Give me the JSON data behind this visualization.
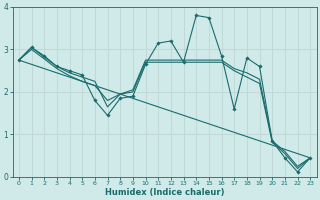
{
  "xlabel": "Humidex (Indice chaleur)",
  "xlim": [
    -0.5,
    23.5
  ],
  "ylim": [
    0,
    4
  ],
  "xticks": [
    0,
    1,
    2,
    3,
    4,
    5,
    6,
    7,
    8,
    9,
    10,
    11,
    12,
    13,
    14,
    15,
    16,
    17,
    18,
    19,
    20,
    21,
    22,
    23
  ],
  "yticks": [
    0,
    1,
    2,
    3,
    4
  ],
  "background_color": "#d0eaea",
  "line_color": "#1a6b6b",
  "grid_color": "#c0d8d8",
  "lines": [
    {
      "x": [
        0,
        1,
        2,
        3,
        4,
        5,
        6,
        7,
        8,
        9,
        10,
        11,
        12,
        13,
        14,
        15,
        16,
        17,
        18,
        19,
        20,
        21,
        22,
        23
      ],
      "y": [
        2.75,
        3.05,
        2.85,
        2.6,
        2.5,
        2.4,
        1.8,
        1.45,
        1.85,
        1.9,
        2.65,
        3.15,
        3.2,
        2.7,
        3.8,
        3.75,
        2.85,
        1.6,
        2.8,
        2.6,
        0.85,
        0.45,
        0.12,
        0.45
      ],
      "has_markers": true
    },
    {
      "x": [
        0,
        23
      ],
      "y": [
        2.75,
        0.45
      ],
      "has_markers": false
    },
    {
      "x": [
        0,
        1,
        2,
        3,
        4,
        5,
        6,
        7,
        8,
        9,
        10,
        11,
        12,
        13,
        14,
        15,
        16,
        17,
        18,
        19,
        20,
        21,
        22,
        23
      ],
      "y": [
        2.75,
        3.05,
        2.82,
        2.6,
        2.45,
        2.35,
        2.25,
        1.65,
        1.95,
        2.05,
        2.75,
        2.75,
        2.75,
        2.75,
        2.75,
        2.75,
        2.75,
        2.55,
        2.45,
        2.3,
        0.85,
        0.6,
        0.25,
        0.45
      ],
      "has_markers": false
    },
    {
      "x": [
        0,
        1,
        2,
        3,
        4,
        5,
        6,
        7,
        8,
        9,
        10,
        11,
        12,
        13,
        14,
        15,
        16,
        17,
        18,
        19,
        20,
        21,
        22,
        23
      ],
      "y": [
        2.75,
        3.0,
        2.78,
        2.55,
        2.38,
        2.25,
        2.15,
        1.8,
        1.95,
        2.0,
        2.7,
        2.7,
        2.7,
        2.7,
        2.7,
        2.7,
        2.7,
        2.5,
        2.35,
        2.2,
        0.82,
        0.55,
        0.2,
        0.45
      ],
      "has_markers": false
    }
  ]
}
